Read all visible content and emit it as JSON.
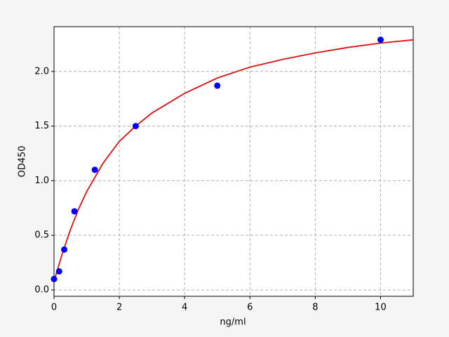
{
  "chart_data": {
    "type": "scatter",
    "xlabel": "ng/ml",
    "ylabel": "OD450",
    "xlim": [
      0,
      11
    ],
    "ylim": [
      -0.058,
      2.41
    ],
    "xticks": [
      0,
      2,
      4,
      6,
      8,
      10
    ],
    "yticks": [
      {
        "value": 0,
        "label": "0.0"
      },
      {
        "value": 0.5,
        "label": "0.5"
      },
      {
        "value": 1,
        "label": "1.0"
      },
      {
        "value": 1.5,
        "label": "1.5"
      },
      {
        "value": 2,
        "label": "2.0"
      }
    ],
    "grid": true,
    "series": [
      {
        "mode": "markers",
        "color": "#0000ff",
        "x": [
          0,
          0.156,
          0.312,
          0.625,
          1.25,
          2.5,
          5,
          10
        ],
        "values": [
          0.1,
          0.17,
          0.37,
          0.72,
          1.1,
          1.5,
          1.87,
          2.29
        ]
      },
      {
        "mode": "line",
        "color": "#dd1111",
        "x": [
          0,
          0.25,
          0.5,
          0.75,
          1,
          1.5,
          2,
          2.5,
          3,
          4,
          5,
          6,
          7,
          8,
          9,
          10,
          11
        ],
        "values": [
          0.08,
          0.33,
          0.55,
          0.74,
          0.9,
          1.16,
          1.36,
          1.5,
          1.62,
          1.8,
          1.94,
          2.04,
          2.11,
          2.17,
          2.22,
          2.26,
          2.29
        ]
      }
    ]
  }
}
